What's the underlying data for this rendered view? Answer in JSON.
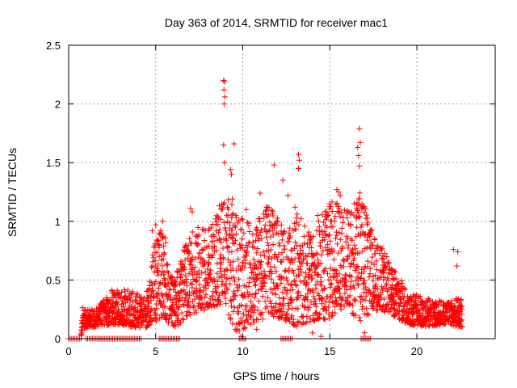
{
  "chart_data": {
    "type": "scatter",
    "title": "Day 363 of 2014, SRMTID for receiver mac1",
    "xlabel": "GPS time / hours",
    "ylabel": "SRMTID / TECUs",
    "xlim": [
      0,
      24.5
    ],
    "ylim": [
      0,
      2.5
    ],
    "xticks": [
      0,
      5,
      10,
      15,
      20
    ],
    "yticks": [
      0,
      0.5,
      1,
      1.5,
      2,
      2.5
    ],
    "grid": true,
    "marker": "+",
    "color": "#ff0000",
    "series": [
      {
        "name": "SRMTID",
        "envelope": [
          {
            "x": 0.0,
            "lo": 0.0,
            "hi": 0.0
          },
          {
            "x": 0.7,
            "lo": 0.0,
            "hi": 0.0
          },
          {
            "x": 0.8,
            "lo": 0.08,
            "hi": 0.3
          },
          {
            "x": 1.5,
            "lo": 0.1,
            "hi": 0.24
          },
          {
            "x": 2.5,
            "lo": 0.12,
            "hi": 0.42
          },
          {
            "x": 3.5,
            "lo": 0.1,
            "hi": 0.42
          },
          {
            "x": 4.4,
            "lo": 0.08,
            "hi": 0.35
          },
          {
            "x": 4.7,
            "lo": 0.12,
            "hi": 0.6
          },
          {
            "x": 5.0,
            "lo": 0.15,
            "hi": 0.95
          },
          {
            "x": 5.5,
            "lo": 0.15,
            "hi": 0.9
          },
          {
            "x": 6.0,
            "lo": 0.08,
            "hi": 0.5
          },
          {
            "x": 7.0,
            "lo": 0.2,
            "hi": 0.95
          },
          {
            "x": 8.0,
            "lo": 0.25,
            "hi": 0.95
          },
          {
            "x": 9.0,
            "lo": 0.3,
            "hi": 1.25
          },
          {
            "x": 9.5,
            "lo": 0.05,
            "hi": 1.2
          },
          {
            "x": 10.5,
            "lo": 0.1,
            "hi": 0.95
          },
          {
            "x": 11.5,
            "lo": 0.2,
            "hi": 1.15
          },
          {
            "x": 12.5,
            "lo": 0.15,
            "hi": 0.9
          },
          {
            "x": 13.0,
            "lo": 0.1,
            "hi": 1.1
          },
          {
            "x": 14.0,
            "lo": 0.15,
            "hi": 0.9
          },
          {
            "x": 15.0,
            "lo": 0.15,
            "hi": 1.2
          },
          {
            "x": 16.0,
            "lo": 0.3,
            "hi": 1.1
          },
          {
            "x": 16.7,
            "lo": 0.1,
            "hi": 1.3
          },
          {
            "x": 17.5,
            "lo": 0.25,
            "hi": 0.9
          },
          {
            "x": 18.5,
            "lo": 0.2,
            "hi": 0.65
          },
          {
            "x": 19.5,
            "lo": 0.12,
            "hi": 0.4
          },
          {
            "x": 20.5,
            "lo": 0.1,
            "hi": 0.35
          },
          {
            "x": 21.5,
            "lo": 0.12,
            "hi": 0.32
          },
          {
            "x": 22.6,
            "lo": 0.1,
            "hi": 0.35
          }
        ],
        "points": [
          {
            "x": 8.9,
            "y": 2.2
          },
          {
            "x": 8.95,
            "y": 2.19
          },
          {
            "x": 8.92,
            "y": 2.12
          },
          {
            "x": 8.97,
            "y": 2.06
          },
          {
            "x": 8.93,
            "y": 2.0
          },
          {
            "x": 8.9,
            "y": 1.65
          },
          {
            "x": 8.95,
            "y": 1.5
          },
          {
            "x": 9.5,
            "y": 1.66
          },
          {
            "x": 16.7,
            "y": 1.79
          },
          {
            "x": 16.75,
            "y": 1.67
          },
          {
            "x": 16.6,
            "y": 1.63
          },
          {
            "x": 16.65,
            "y": 1.56
          },
          {
            "x": 16.7,
            "y": 1.47
          },
          {
            "x": 13.2,
            "y": 1.57
          },
          {
            "x": 13.25,
            "y": 1.52
          },
          {
            "x": 13.2,
            "y": 1.45
          },
          {
            "x": 11.8,
            "y": 1.48
          },
          {
            "x": 9.3,
            "y": 1.44
          },
          {
            "x": 9.35,
            "y": 1.4
          },
          {
            "x": 12.3,
            "y": 1.35
          },
          {
            "x": 15.4,
            "y": 1.27
          },
          {
            "x": 15.5,
            "y": 1.25
          },
          {
            "x": 15.6,
            "y": 1.22
          },
          {
            "x": 11.0,
            "y": 1.24
          },
          {
            "x": 12.6,
            "y": 1.22
          },
          {
            "x": 7.0,
            "y": 1.11
          },
          {
            "x": 7.1,
            "y": 1.08
          },
          {
            "x": 9.4,
            "y": 1.19
          },
          {
            "x": 9.6,
            "y": 1.05
          },
          {
            "x": 10.2,
            "y": 1.1
          },
          {
            "x": 13.0,
            "y": 1.12
          },
          {
            "x": 14.3,
            "y": 1.05
          },
          {
            "x": 16.4,
            "y": 1.15
          },
          {
            "x": 16.0,
            "y": 1.03
          },
          {
            "x": 5.0,
            "y": 0.97
          },
          {
            "x": 5.4,
            "y": 1.0
          },
          {
            "x": 4.8,
            "y": 0.92
          },
          {
            "x": 17.3,
            "y": 0.87
          },
          {
            "x": 18.0,
            "y": 0.77
          },
          {
            "x": 22.1,
            "y": 0.76
          },
          {
            "x": 22.35,
            "y": 0.74
          },
          {
            "x": 22.3,
            "y": 0.62
          },
          {
            "x": 9.9,
            "y": 0.02
          },
          {
            "x": 9.7,
            "y": 0.08
          },
          {
            "x": 14.0,
            "y": 0.05
          },
          {
            "x": 14.5,
            "y": 0.02
          },
          {
            "x": 17.0,
            "y": 0.05
          },
          {
            "x": 10.8,
            "y": 0.08
          }
        ]
      }
    ],
    "zero_segments": [
      [
        0.0,
        0.8
      ],
      [
        1.0,
        4.2
      ],
      [
        5.2,
        6.4
      ],
      [
        9.8,
        10.2
      ],
      [
        12.2,
        12.9
      ],
      [
        16.8,
        17.4
      ]
    ]
  }
}
